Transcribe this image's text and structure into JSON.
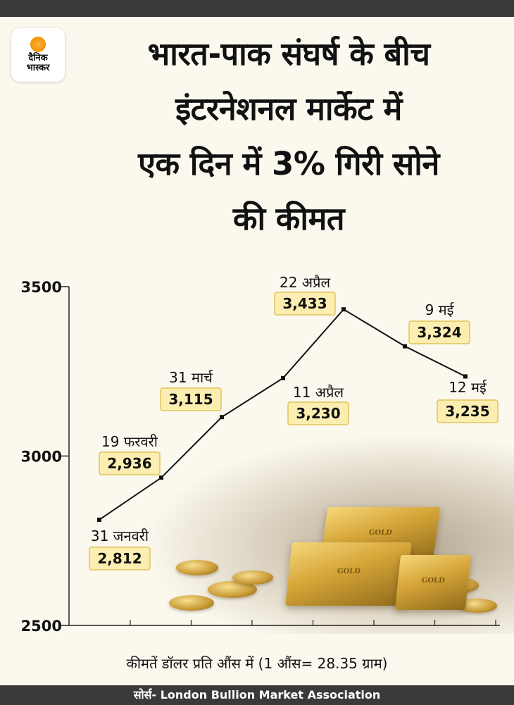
{
  "brand": {
    "logo_line1": "दैनिक",
    "logo_line2": "भास्कर"
  },
  "headline": [
    "भारत-पाक संघर्ष के बीच",
    "इंटरनेशनल मार्केट में",
    "एक दिन में 3% गिरी सोने",
    "की कीमत"
  ],
  "chart_data": {
    "type": "line",
    "x": [
      "31 जनवरी",
      "19 फरवरी",
      "31 मार्च",
      "11 अप्रैल",
      "22 अप्रैल",
      "9 मई",
      "12 मई"
    ],
    "values": [
      2812,
      2936,
      3115,
      3230,
      3433,
      3324,
      3235
    ],
    "value_labels": [
      "2,812",
      "2,936",
      "3,115",
      "3,230",
      "3,433",
      "3,324",
      "3,235"
    ],
    "ylim": [
      2500,
      3500
    ],
    "yticks": [
      3500,
      3000,
      2500
    ],
    "grid": false,
    "line_color": "#111111",
    "label_bg": "#fbeeb0",
    "label_border": "#e3c35a"
  },
  "note": "कीमतें डॉलर प्रति औंस में (1 औंस= 28.35 ग्राम)",
  "source": "सोर्स- London Bullion Market Association"
}
